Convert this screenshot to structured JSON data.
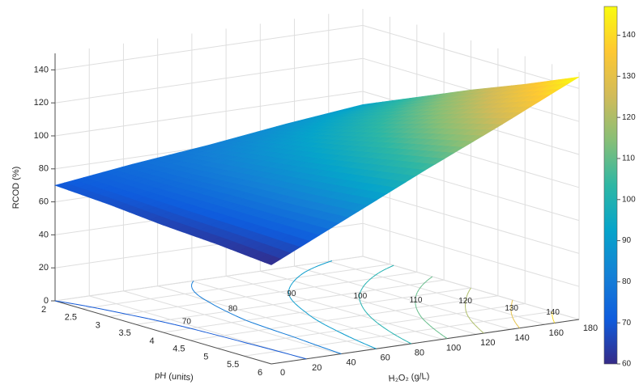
{
  "chart_data": {
    "type": "surface3d",
    "xlabel": "H₂O₂ (g/L)",
    "ylabel": "pH (units)",
    "zlabel": "RCOD (%)",
    "x": [
      0,
      45,
      90,
      135,
      180
    ],
    "y": [
      2,
      3,
      4,
      5,
      6
    ],
    "z": [
      [
        70,
        76,
        81,
        87,
        92
      ],
      [
        68,
        77,
        87,
        96,
        106
      ],
      [
        65,
        79,
        92,
        106,
        120
      ],
      [
        63,
        80,
        98,
        116,
        133
      ],
      [
        60,
        82,
        104,
        125,
        147
      ]
    ],
    "xlim": [
      0,
      180
    ],
    "xticks": [
      0,
      20,
      40,
      60,
      80,
      100,
      120,
      140,
      160,
      180
    ],
    "ylim": [
      2,
      6
    ],
    "yticks": [
      2,
      2.5,
      3,
      3.5,
      4,
      4.5,
      5,
      5.5,
      6
    ],
    "zlim": [
      0,
      150
    ],
    "zticks": [
      0,
      20,
      40,
      60,
      80,
      100,
      120,
      140
    ],
    "clim": [
      60,
      147
    ],
    "cticks": [
      60,
      70,
      80,
      90,
      100,
      110,
      120,
      130,
      140
    ],
    "contour_levels": [
      60,
      70,
      80,
      90,
      100,
      110,
      120,
      130,
      140
    ],
    "colormap": "parula",
    "grid": true
  }
}
